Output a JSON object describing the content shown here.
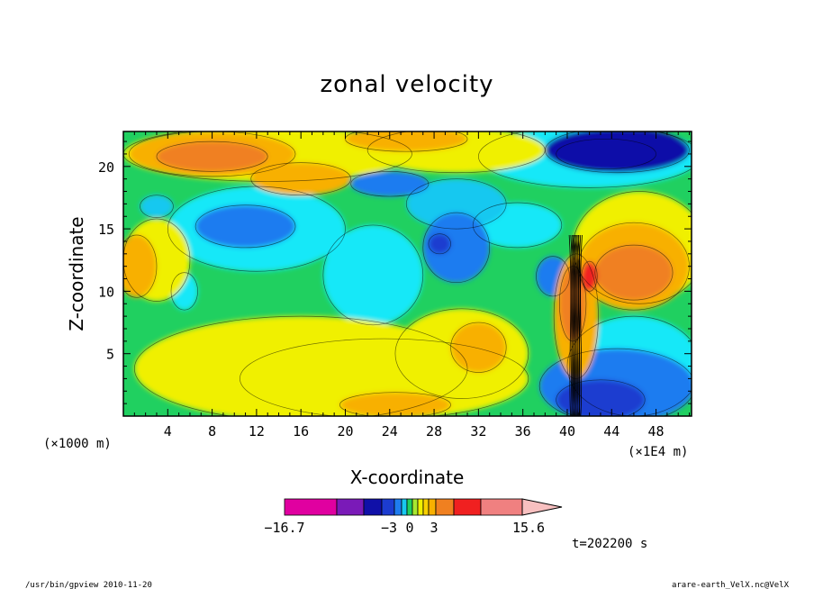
{
  "chart_data": {
    "type": "heatmap",
    "title": "zonal velocity",
    "xlabel": "X-coordinate",
    "ylabel": "Z-coordinate",
    "x_unit_left": "(×1000 m)",
    "x_unit_right": "(×1E4 m)",
    "xlim": [
      0,
      51.2
    ],
    "ylim": [
      0,
      22.8
    ],
    "x_ticks": [
      4,
      8,
      12,
      16,
      20,
      24,
      28,
      32,
      36,
      40,
      44,
      48
    ],
    "y_ticks": [
      5,
      10,
      15,
      20
    ],
    "colorbar": {
      "colors": [
        "#e000a0",
        "#7a1ab8",
        "#1010a8",
        "#1c3cd0",
        "#1e7cf0",
        "#18c8f0",
        "#20d060",
        "#a8e830",
        "#f0f000",
        "#f8d000",
        "#f8b000",
        "#f08020",
        "#f02020",
        "#f08080",
        "#f8c0c0"
      ],
      "tick_labels": [
        "−16.7",
        "−3",
        "0",
        "3",
        "15.6"
      ]
    },
    "regions": [
      {
        "level": -12,
        "cx": 44.5,
        "cy": 21.3,
        "rx": 6.5,
        "ry": 1.8
      },
      {
        "level": -9,
        "cx": 43.5,
        "cy": 21.0,
        "rx": 4.5,
        "ry": 1.2
      },
      {
        "level": -9,
        "cx": 43.0,
        "cy": 1.3,
        "rx": 4.0,
        "ry": 1.6
      },
      {
        "level": -6,
        "cx": 44.5,
        "cy": 2.4,
        "rx": 7.0,
        "ry": 3.0
      },
      {
        "level": -6,
        "cx": 11.0,
        "cy": 15.2,
        "rx": 4.5,
        "ry": 1.7
      },
      {
        "level": -6,
        "cx": 30.0,
        "cy": 13.5,
        "rx": 3.0,
        "ry": 2.8
      },
      {
        "level": -6,
        "cx": 24.0,
        "cy": 18.6,
        "rx": 3.5,
        "ry": 1.0
      },
      {
        "level": -6,
        "cx": 38.7,
        "cy": 11.2,
        "rx": 1.5,
        "ry": 1.6
      },
      {
        "level": -9,
        "cx": 28.5,
        "cy": 13.8,
        "rx": 1.0,
        "ry": 0.8
      },
      {
        "level": -4,
        "cx": 3.0,
        "cy": 16.8,
        "rx": 1.5,
        "ry": 0.9
      },
      {
        "level": -4,
        "cx": 30.0,
        "cy": 17.0,
        "rx": 4.5,
        "ry": 2.0
      },
      {
        "level": -3,
        "cx": 22.5,
        "cy": 11.3,
        "rx": 4.5,
        "ry": 4.0
      },
      {
        "level": -3,
        "cx": 46.0,
        "cy": 4.0,
        "rx": 6.0,
        "ry": 4.0
      },
      {
        "level": -3,
        "cx": 12.0,
        "cy": 15.0,
        "rx": 8.0,
        "ry": 3.4
      },
      {
        "level": -3,
        "cx": 42.0,
        "cy": 20.8,
        "rx": 10.0,
        "ry": 2.5
      },
      {
        "level": -3,
        "cx": 5.5,
        "cy": 10.0,
        "rx": 1.2,
        "ry": 1.5
      },
      {
        "level": -3,
        "cx": 35.5,
        "cy": 15.3,
        "rx": 4.0,
        "ry": 1.8
      },
      {
        "level": 3,
        "cx": 16.0,
        "cy": 3.8,
        "rx": 15.0,
        "ry": 4.2
      },
      {
        "level": 3,
        "cx": 23.5,
        "cy": 3.0,
        "rx": 13.0,
        "ry": 3.2
      },
      {
        "level": 3,
        "cx": 30.5,
        "cy": 5.0,
        "rx": 6.0,
        "ry": 3.6
      },
      {
        "level": 3,
        "cx": 46.5,
        "cy": 13.5,
        "rx": 6.0,
        "ry": 4.5
      },
      {
        "level": 3,
        "cx": 13.0,
        "cy": 21.0,
        "rx": 13.0,
        "ry": 2.2
      },
      {
        "level": 3,
        "cx": 30.0,
        "cy": 21.3,
        "rx": 8.0,
        "ry": 1.8
      },
      {
        "level": 3,
        "cx": 3.0,
        "cy": 12.5,
        "rx": 3.0,
        "ry": 3.3
      },
      {
        "level": 6,
        "cx": 8.0,
        "cy": 21.0,
        "rx": 7.5,
        "ry": 1.8
      },
      {
        "level": 6,
        "cx": 25.5,
        "cy": 22.2,
        "rx": 5.5,
        "ry": 1.0
      },
      {
        "level": 6,
        "cx": 16.0,
        "cy": 19.0,
        "rx": 4.5,
        "ry": 1.3
      },
      {
        "level": 6,
        "cx": 46.0,
        "cy": 12.0,
        "rx": 5.0,
        "ry": 3.5
      },
      {
        "level": 6,
        "cx": 32.0,
        "cy": 5.5,
        "rx": 2.5,
        "ry": 2.0
      },
      {
        "level": 6,
        "cx": 24.5,
        "cy": 0.9,
        "rx": 5.0,
        "ry": 1.0
      },
      {
        "level": 6,
        "cx": 1.2,
        "cy": 12.0,
        "rx": 1.8,
        "ry": 2.5
      },
      {
        "level": 6,
        "cx": 40.8,
        "cy": 8.0,
        "rx": 2.0,
        "ry": 5.0
      },
      {
        "level": 9,
        "cx": 8.0,
        "cy": 20.8,
        "rx": 5.0,
        "ry": 1.2
      },
      {
        "level": 9,
        "cx": 46.0,
        "cy": 11.5,
        "rx": 3.5,
        "ry": 2.2
      },
      {
        "level": 9,
        "cx": 40.5,
        "cy": 9.0,
        "rx": 1.2,
        "ry": 3.0
      },
      {
        "level": 12,
        "cx": 42.0,
        "cy": 11.2,
        "rx": 0.7,
        "ry": 1.2
      }
    ],
    "timestamp": "t=202200 s",
    "footer_left": "/usr/bin/gpview  2010-11-20",
    "footer_right": "arare-earth_VelX.nc@VelX"
  }
}
